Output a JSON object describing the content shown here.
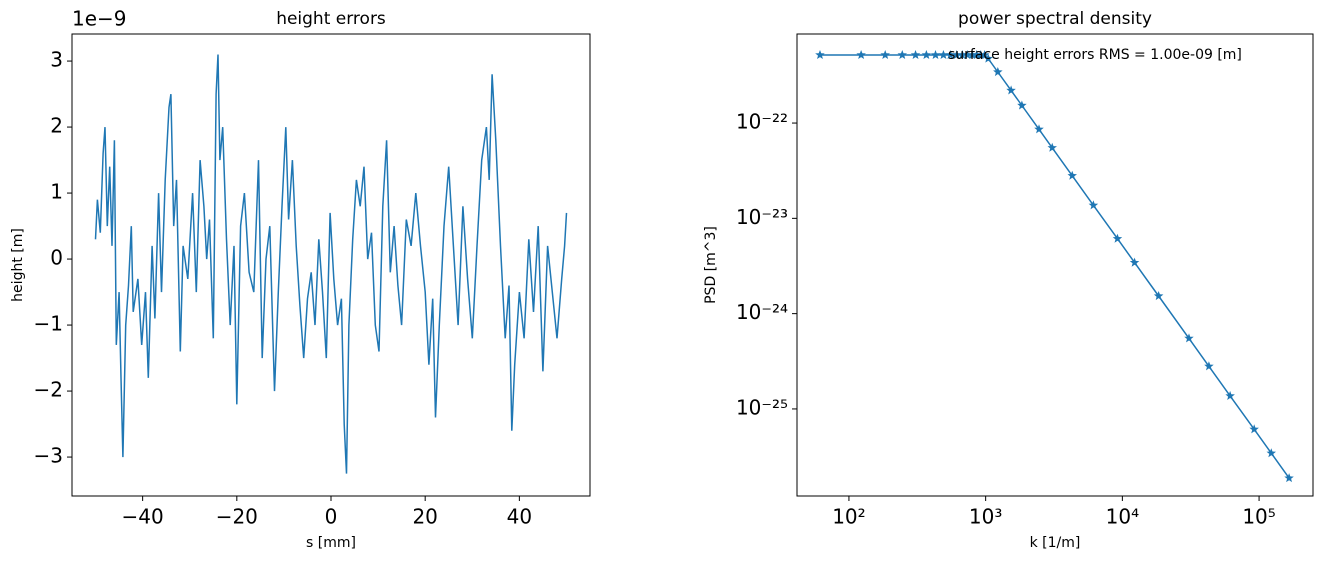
{
  "chart_data": [
    {
      "type": "line",
      "title": "height errors",
      "xlabel": "s [mm]",
      "ylabel": "height [m]",
      "offset_text": "1e−9",
      "color": "#1f77b4",
      "xlim": [
        -55,
        55
      ],
      "ylim": [
        -3.59,
        3.41
      ],
      "xticks": [
        {
          "value": -40,
          "label": "−40"
        },
        {
          "value": -20,
          "label": "−20"
        },
        0,
        20,
        40
      ],
      "yticks": [
        {
          "value": -3,
          "label": "−3"
        },
        {
          "value": -2,
          "label": "−2"
        },
        {
          "value": -1,
          "label": "−1"
        },
        0,
        1,
        2,
        3
      ],
      "x": [
        -50,
        -49.6,
        -49,
        -48.4,
        -48,
        -47.5,
        -47,
        -46.5,
        -46,
        -45.6,
        -45,
        -44.6,
        -44.2,
        -43.6,
        -43,
        -42.4,
        -42,
        -41,
        -40.2,
        -39.4,
        -38.8,
        -38,
        -37.4,
        -36.6,
        -36,
        -35.2,
        -34.4,
        -34,
        -33.4,
        -32.8,
        -32,
        -31.4,
        -30.4,
        -29.4,
        -28.6,
        -27.8,
        -27,
        -26.4,
        -25.8,
        -25,
        -24.4,
        -24,
        -23.6,
        -23,
        -22.2,
        -21.4,
        -20.6,
        -20,
        -19.2,
        -18.4,
        -17.4,
        -16.4,
        -15.4,
        -14.6,
        -13.8,
        -13,
        -12,
        -11.2,
        -10.4,
        -9.6,
        -9,
        -8.2,
        -7.4,
        -6.6,
        -5.8,
        -5,
        -4.2,
        -3.4,
        -2.6,
        -1.8,
        -1,
        -0.2,
        0.6,
        1.4,
        2.2,
        2.8,
        3.3,
        3.8,
        4.6,
        5.4,
        6.2,
        7,
        7.8,
        8.6,
        9.4,
        10.2,
        11,
        11.8,
        12.6,
        13.4,
        14.2,
        15,
        16,
        17,
        18,
        19,
        20,
        20.8,
        21.6,
        22.2,
        23,
        24,
        25,
        26,
        27,
        28,
        29,
        30,
        31,
        32,
        33,
        33.6,
        34.2,
        35,
        36,
        37,
        37.8,
        38.4,
        39,
        40,
        41,
        42,
        43,
        44,
        45,
        46,
        47,
        48,
        49,
        49.6,
        50
      ],
      "values": [
        0.3,
        0.9,
        0.4,
        1.6,
        2.0,
        0.5,
        1.4,
        0.2,
        1.8,
        -1.3,
        -0.5,
        -1.8,
        -3.0,
        -1.0,
        -0.4,
        0.5,
        -0.8,
        -0.3,
        -1.3,
        -0.5,
        -1.8,
        0.2,
        -0.9,
        1.0,
        -0.5,
        1.2,
        2.3,
        2.5,
        0.5,
        1.2,
        -1.4,
        0.2,
        -0.3,
        1.0,
        -0.5,
        1.5,
        0.8,
        0,
        0.6,
        -1.2,
        2.5,
        3.1,
        1.5,
        2.0,
        0.3,
        -1.0,
        0.2,
        -2.2,
        0.5,
        1.0,
        -0.2,
        -0.5,
        1.5,
        -1.5,
        0,
        0.5,
        -2.0,
        -0.5,
        0.8,
        2.0,
        0.6,
        1.5,
        0.2,
        -0.7,
        -1.5,
        -0.6,
        -0.2,
        -1.0,
        0.3,
        -0.5,
        -1.5,
        0.7,
        -0.3,
        -1.0,
        -0.6,
        -2.5,
        -3.25,
        -1.0,
        0.3,
        1.2,
        0.8,
        1.4,
        0.0,
        0.4,
        -1.0,
        -1.4,
        0.8,
        1.8,
        -0.2,
        0.5,
        -0.4,
        -1.0,
        0.6,
        0.2,
        1.0,
        0.2,
        -0.5,
        -1.6,
        -0.6,
        -2.4,
        -1.0,
        0.5,
        1.4,
        0.2,
        -1.0,
        0.8,
        -0.3,
        -1.2,
        0.2,
        1.5,
        2.0,
        1.2,
        2.8,
        1.8,
        0.2,
        -1.2,
        -0.4,
        -2.6,
        -1.6,
        -0.5,
        -1.2,
        0.3,
        -0.8,
        0.5,
        -1.7,
        0.2,
        -0.5,
        -1.2,
        -0.3,
        0.2,
        0.7
      ]
    },
    {
      "type": "line",
      "title": "power spectral density",
      "xlabel": "k [1/m]",
      "ylabel": "PSD [m^3]",
      "annotation": "surface height errors RMS = 1.00e-09 [m]",
      "color": "#1f77b4",
      "marker": "star",
      "log_x": true,
      "log_y": true,
      "xlim": [
        41.7,
        248000
      ],
      "ylim": [
        1.22e-26,
        8.6e-22
      ],
      "xticks": [
        {
          "value": 100,
          "label": "10²"
        },
        {
          "value": 1000,
          "label": "10³"
        },
        {
          "value": 10000,
          "label": "10⁴"
        },
        {
          "value": 100000,
          "label": "10⁵"
        }
      ],
      "yticks": [
        {
          "value": 1e-25,
          "label": "10⁻²⁵"
        },
        {
          "value": 1e-24,
          "label": "10⁻²⁴"
        },
        {
          "value": 1e-23,
          "label": "10⁻²³"
        },
        {
          "value": 1e-22,
          "label": "10⁻²²"
        }
      ],
      "x": [
        61.4,
        122.8,
        184.2,
        245.6,
        307,
        368.4,
        429.8,
        491.2,
        552.6,
        614,
        675.4,
        736.8,
        798.2,
        859.6,
        921,
        982.4,
        1043.8,
        1228,
        1535,
        1842,
        2456,
        3070,
        4298,
        6140,
        9210,
        12280,
        18420,
        30700,
        42980,
        61400,
        92100,
        122800,
        165780
      ],
      "values": [
        5.18e-22,
        5.18e-22,
        5.18e-22,
        5.18e-22,
        5.18e-22,
        5.18e-22,
        5.18e-22,
        5.18e-22,
        5.18e-22,
        5.18e-22,
        5.18e-22,
        5.18e-22,
        5.18e-22,
        5.18e-22,
        5.18e-22,
        5.18e-22,
        4.75e-22,
        3.43e-22,
        2.2e-22,
        1.53e-22,
        8.59e-23,
        5.5e-23,
        2.8e-23,
        1.37e-23,
        6.11e-24,
        3.43e-24,
        1.53e-24,
        5.5e-25,
        2.8e-25,
        1.37e-25,
        6.11e-26,
        3.43e-26,
        1.88e-26
      ]
    }
  ]
}
